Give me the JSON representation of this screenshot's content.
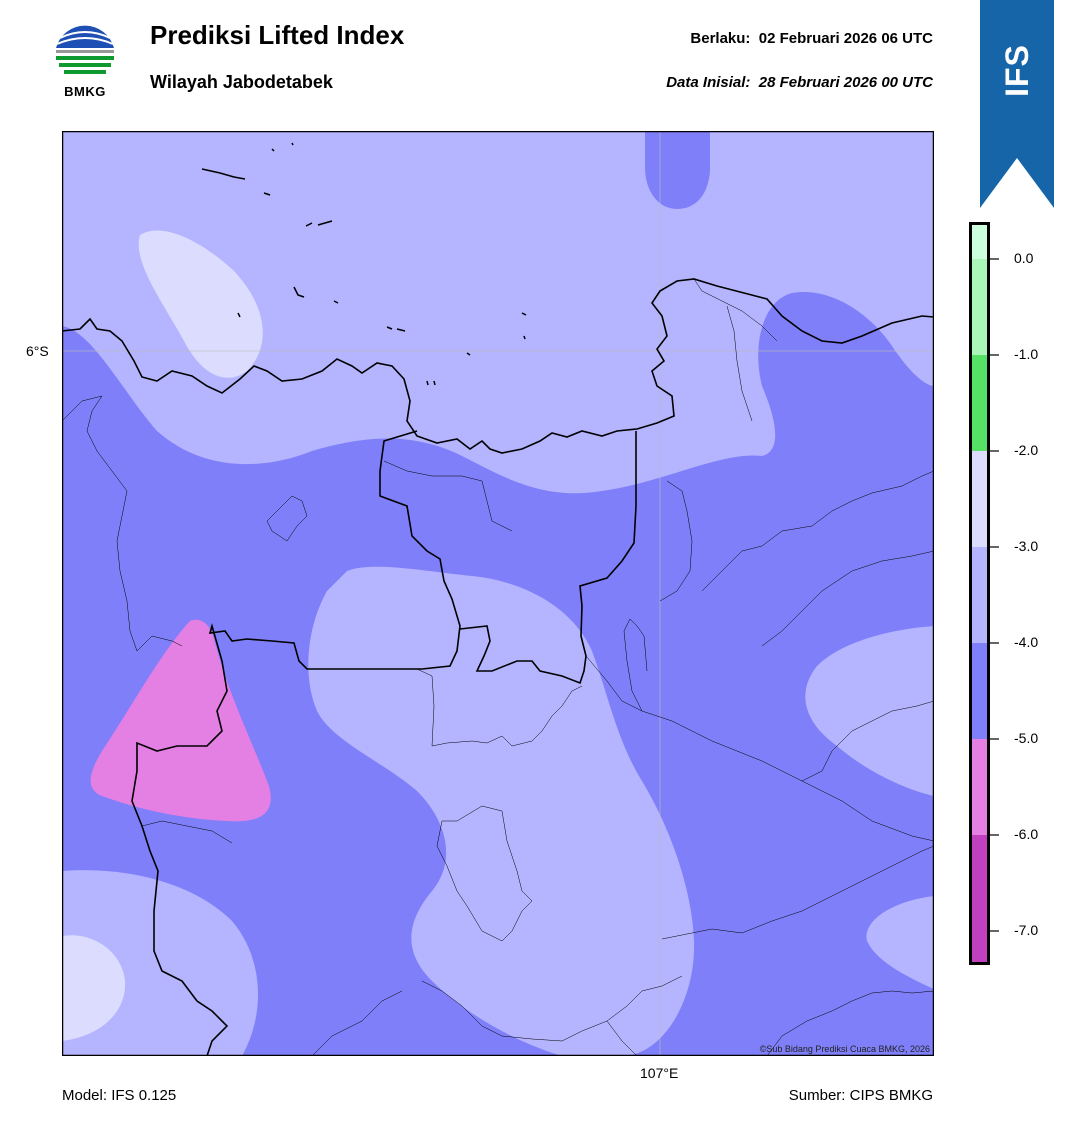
{
  "header": {
    "title": "Prediksi Lifted Index",
    "subtitle": "Wilayah Jabodetabek",
    "valid_label": "Berlaku:  02 Februari 2026 06 UTC",
    "init_label": "Data Inisial:  28 Februari 2026 00 UTC"
  },
  "logo": {
    "text": "BMKG"
  },
  "ribbon": {
    "text": "IFS",
    "color": "#1565a8"
  },
  "map": {
    "lat_label": "6°S",
    "lon_label": "107°E",
    "copyright": "©Sub Bidang Prediksi Cuaca BMKG, 2026"
  },
  "footer": {
    "model": "Model: IFS 0.125",
    "source": "Sumber: CIPS BMKG"
  },
  "legend": {
    "ticks": [
      "0.0",
      "-1.0",
      "-2.0",
      "-3.0",
      "-4.0",
      "-5.0",
      "-6.0",
      "-7.0"
    ],
    "bands": [
      {
        "range": "0.0 to 0.4",
        "color": "#ccffdd"
      },
      {
        "range": "-1.0 to 0.0",
        "color": "#aaf5b8"
      },
      {
        "range": "-2.0 to -1.0",
        "color": "#55e066"
      },
      {
        "range": "-3.0 to -2.0",
        "color": "#dcdcff"
      },
      {
        "range": "-4.0 to -3.0",
        "color": "#b4b4ff"
      },
      {
        "range": "-5.0 to -4.0",
        "color": "#7f7ff9"
      },
      {
        "range": "-6.0 to -5.0",
        "color": "#e47fe4"
      },
      {
        "range": "-7.0 to -6.0",
        "color": "#c040c0"
      },
      {
        "range": "below -7.0",
        "color": "#8a1f8a"
      }
    ]
  }
}
